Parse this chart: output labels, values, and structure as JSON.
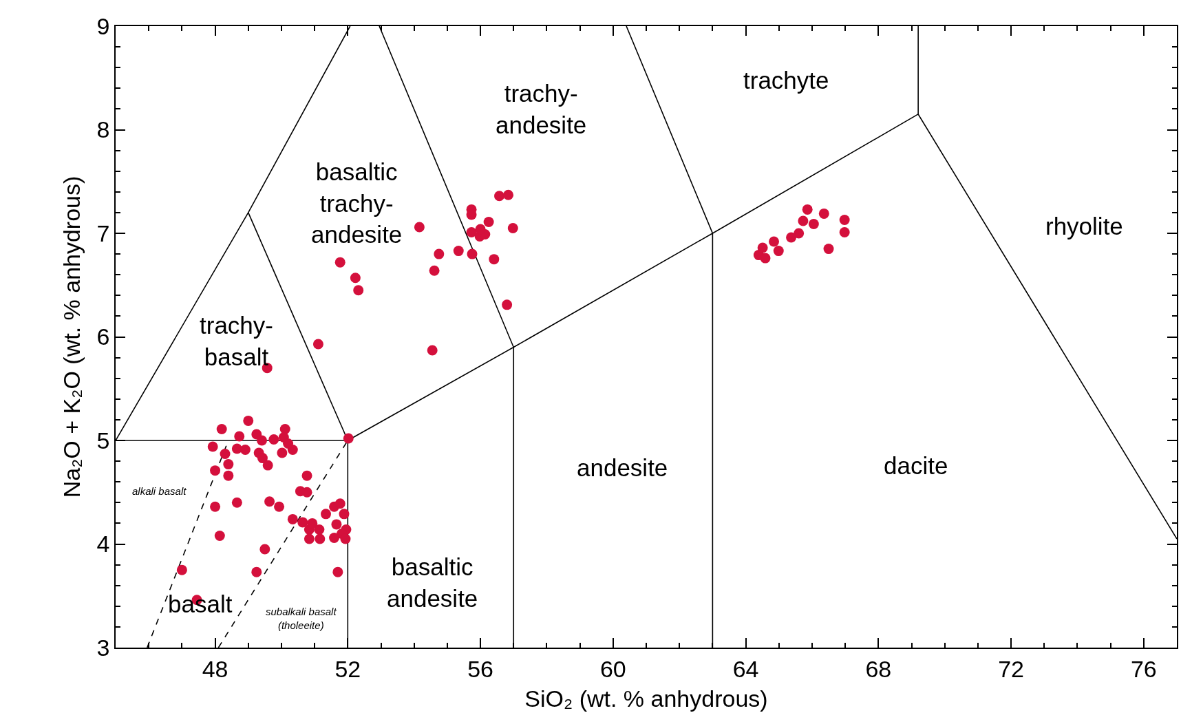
{
  "chart_data": {
    "type": "scatter",
    "xlabel": "SiO₂ (wt. % anhydrous)",
    "ylabel": "Na₂O + K₂O (wt. % anhydrous)",
    "xlim": [
      45,
      77
    ],
    "ylim": [
      3,
      9
    ],
    "xticks": [
      {
        "value": 45,
        "label": null
      },
      {
        "value": 46,
        "label": null
      },
      {
        "value": 47,
        "label": null
      },
      48,
      {
        "value": 49,
        "label": null
      },
      {
        "value": 50,
        "label": null
      },
      {
        "value": 51,
        "label": null
      },
      52,
      {
        "value": 53,
        "label": null
      },
      {
        "value": 54,
        "label": null
      },
      {
        "value": 55,
        "label": null
      },
      56,
      {
        "value": 57,
        "label": null
      },
      {
        "value": 58,
        "label": null
      },
      {
        "value": 59,
        "label": null
      },
      60,
      {
        "value": 61,
        "label": null
      },
      {
        "value": 62,
        "label": null
      },
      {
        "value": 63,
        "label": null
      },
      64,
      {
        "value": 65,
        "label": null
      },
      {
        "value": 66,
        "label": null
      },
      {
        "value": 67,
        "label": null
      },
      68,
      {
        "value": 69,
        "label": null
      },
      {
        "value": 70,
        "label": null
      },
      {
        "value": 71,
        "label": null
      },
      72,
      {
        "value": 73,
        "label": null
      },
      {
        "value": 74,
        "label": null
      },
      {
        "value": 75,
        "label": null
      },
      76,
      {
        "value": 77,
        "label": null
      }
    ],
    "yticks": [
      3,
      {
        "value": 3.2,
        "label": null
      },
      {
        "value": 3.4,
        "label": null
      },
      {
        "value": 3.6,
        "label": null
      },
      {
        "value": 3.8,
        "label": null
      },
      4,
      {
        "value": 4.2,
        "label": null
      },
      {
        "value": 4.4,
        "label": null
      },
      {
        "value": 4.6,
        "label": null
      },
      {
        "value": 4.8,
        "label": null
      },
      5,
      {
        "value": 5.2,
        "label": null
      },
      {
        "value": 5.4,
        "label": null
      },
      {
        "value": 5.6,
        "label": null
      },
      {
        "value": 5.8,
        "label": null
      },
      6,
      {
        "value": 6.2,
        "label": null
      },
      {
        "value": 6.4,
        "label": null
      },
      {
        "value": 6.6,
        "label": null
      },
      {
        "value": 6.8,
        "label": null
      },
      7,
      {
        "value": 7.2,
        "label": null
      },
      {
        "value": 7.4,
        "label": null
      },
      {
        "value": 7.6,
        "label": null
      },
      {
        "value": 7.8,
        "label": null
      },
      8,
      {
        "value": 8.2,
        "label": null
      },
      {
        "value": 8.4,
        "label": null
      },
      {
        "value": 8.6,
        "label": null
      },
      {
        "value": 8.8,
        "label": null
      },
      9
    ],
    "grid": false,
    "marker": "circle",
    "series": [
      {
        "color": "#d4103c",
        "x": [
          48.2,
          49.0,
          48.73,
          50.11,
          49.77,
          49.25,
          49.41,
          47.93,
          48.3,
          48.4,
          48.4,
          48.0,
          48.66,
          48.91,
          49.32,
          49.43,
          49.59,
          50.02,
          50.34,
          50.07,
          50.2,
          52.02,
          48.0,
          48.66,
          49.64,
          49.93,
          50.77,
          50.57,
          50.77,
          50.34,
          50.64,
          50.84,
          50.84,
          51.16,
          51.14,
          51.34,
          51.59,
          51.77,
          51.89,
          51.66,
          51.95,
          51.82,
          51.59,
          51.93,
          50.93,
          48.14,
          49.5,
          49.25,
          51.7,
          47.0,
          47.45,
          49.57,
          51.11,
          51.77,
          52.23,
          52.32,
          54.16,
          54.55,
          54.61,
          54.75,
          55.34,
          55.73,
          55.73,
          55.73,
          55.75,
          55.98,
          56.14,
          56.25,
          56.41,
          56.57,
          56.84,
          56.98,
          56.8,
          56.0,
          65.86,
          66.36,
          66.98,
          66.98,
          65.73,
          66.05,
          65.6,
          65.37,
          64.85,
          64.99,
          64.51,
          64.39,
          64.59,
          66.5
        ],
        "values": [
          5.11,
          5.19,
          5.04,
          5.11,
          5.01,
          5.06,
          5.0,
          4.94,
          4.87,
          4.77,
          4.66,
          4.71,
          4.92,
          4.91,
          4.88,
          4.83,
          4.76,
          4.88,
          4.91,
          5.03,
          4.97,
          5.02,
          4.36,
          4.4,
          4.41,
          4.36,
          4.66,
          4.51,
          4.5,
          4.24,
          4.21,
          4.14,
          4.05,
          4.05,
          4.14,
          4.29,
          4.36,
          4.39,
          4.29,
          4.19,
          4.14,
          4.1,
          4.06,
          4.05,
          4.2,
          4.08,
          3.95,
          3.73,
          3.73,
          3.75,
          3.46,
          5.7,
          5.93,
          6.72,
          6.57,
          6.45,
          7.06,
          5.87,
          6.64,
          6.8,
          6.83,
          7.23,
          7.18,
          7.01,
          6.8,
          6.97,
          6.99,
          7.11,
          6.75,
          7.36,
          7.37,
          7.05,
          6.31,
          7.04,
          7.23,
          7.19,
          7.13,
          7.01,
          7.12,
          7.09,
          7.0,
          6.96,
          6.92,
          6.83,
          6.86,
          6.79,
          6.76,
          6.85
        ]
      },
      {
        "type": "line",
        "marker": "none",
        "color": "#000000",
        "line_style": "solid",
        "x": [
          45,
          49,
          52.07
        ],
        "values": [
          5,
          7.2,
          9
        ]
      },
      {
        "type": "line",
        "marker": "none",
        "color": "#000000",
        "line_style": "solid",
        "x": [
          49,
          52
        ],
        "values": [
          7.2,
          5
        ]
      },
      {
        "type": "line",
        "marker": "none",
        "color": "#000000",
        "line_style": "solid",
        "x": [
          45,
          52,
          52
        ],
        "values": [
          5,
          5,
          3
        ]
      },
      {
        "type": "line",
        "marker": "none",
        "color": "#000000",
        "line_style": "solid",
        "x": [
          52,
          57,
          63,
          69.2
        ],
        "values": [
          5,
          5.9,
          7,
          8.15
        ]
      },
      {
        "type": "line",
        "marker": "none",
        "color": "#000000",
        "line_style": "solid",
        "x": [
          52.95,
          57,
          57
        ],
        "values": [
          9,
          5.9,
          3
        ]
      },
      {
        "type": "line",
        "marker": "none",
        "color": "#000000",
        "line_style": "solid",
        "x": [
          60.4,
          63,
          63
        ],
        "values": [
          9,
          7,
          3
        ]
      },
      {
        "type": "line",
        "marker": "none",
        "color": "#000000",
        "line_style": "solid",
        "x": [
          69.2,
          69.2,
          77
        ],
        "values": [
          9,
          8.15,
          4.05
        ]
      },
      {
        "type": "line",
        "marker": "none",
        "color": "#000000",
        "line_style": "dashed",
        "x": [
          45.95,
          48.4
        ],
        "values": [
          3,
          5
        ]
      },
      {
        "type": "line",
        "marker": "none",
        "color": "#000000",
        "line_style": "dashed",
        "x": [
          48.1,
          52
        ],
        "values": [
          3,
          5
        ]
      }
    ],
    "annotations": [
      "trachyte",
      "trachy-\nandesite",
      "basaltic\ntrachy-\nandesite",
      "trachy-\nbasalt",
      "rhyolite",
      "andesite",
      "dacite",
      "basaltic\nandesite",
      "basalt",
      "alkali basalt",
      "subalkali basalt\n(tholeeite)"
    ]
  }
}
